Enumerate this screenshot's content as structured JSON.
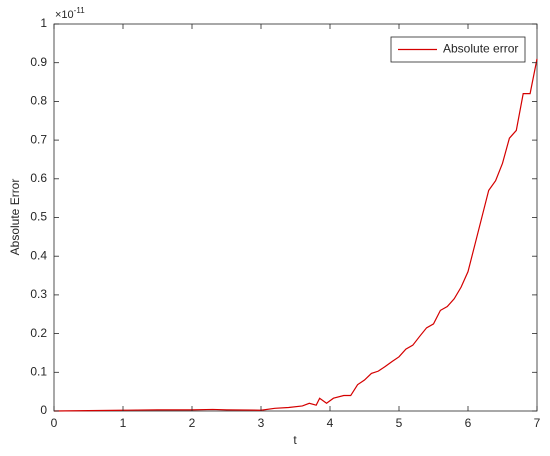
{
  "chart_data": {
    "type": "line",
    "xlabel": "t",
    "ylabel": "Absolute Error",
    "y_multiplier": "×10",
    "y_multiplier_exponent": "-11",
    "xlim": [
      0,
      7
    ],
    "xticks": [
      0,
      1,
      2,
      3,
      4,
      5,
      6,
      7
    ],
    "ylim": [
      0,
      1
    ],
    "yticks": [
      0,
      0.1,
      0.2,
      0.3,
      0.4,
      0.5,
      0.6,
      0.7,
      0.8,
      0.9,
      1
    ],
    "legend": "top-right",
    "series": [
      {
        "name": "Absolute error",
        "color": "#d40000",
        "x": [
          0,
          0.5,
          1,
          1.5,
          2,
          2.3,
          2.5,
          3,
          3.2,
          3.4,
          3.6,
          3.7,
          3.8,
          3.85,
          3.95,
          4.05,
          4.2,
          4.3,
          4.4,
          4.5,
          4.6,
          4.7,
          4.8,
          4.9,
          5.0,
          5.1,
          5.2,
          5.3,
          5.4,
          5.5,
          5.6,
          5.7,
          5.8,
          5.9,
          6.0,
          6.1,
          6.2,
          6.3,
          6.4,
          6.5,
          6.6,
          6.7,
          6.8,
          6.9,
          7.0
        ],
        "values": [
          0,
          0.001,
          0.002,
          0.003,
          0.003,
          0.004,
          0.003,
          0.002,
          0.007,
          0.009,
          0.013,
          0.02,
          0.015,
          0.033,
          0.02,
          0.033,
          0.04,
          0.04,
          0.068,
          0.08,
          0.097,
          0.103,
          0.115,
          0.128,
          0.14,
          0.16,
          0.17,
          0.193,
          0.215,
          0.225,
          0.26,
          0.27,
          0.29,
          0.32,
          0.36,
          0.43,
          0.5,
          0.57,
          0.595,
          0.64,
          0.705,
          0.725,
          0.82,
          0.82,
          0.91
        ]
      }
    ]
  }
}
